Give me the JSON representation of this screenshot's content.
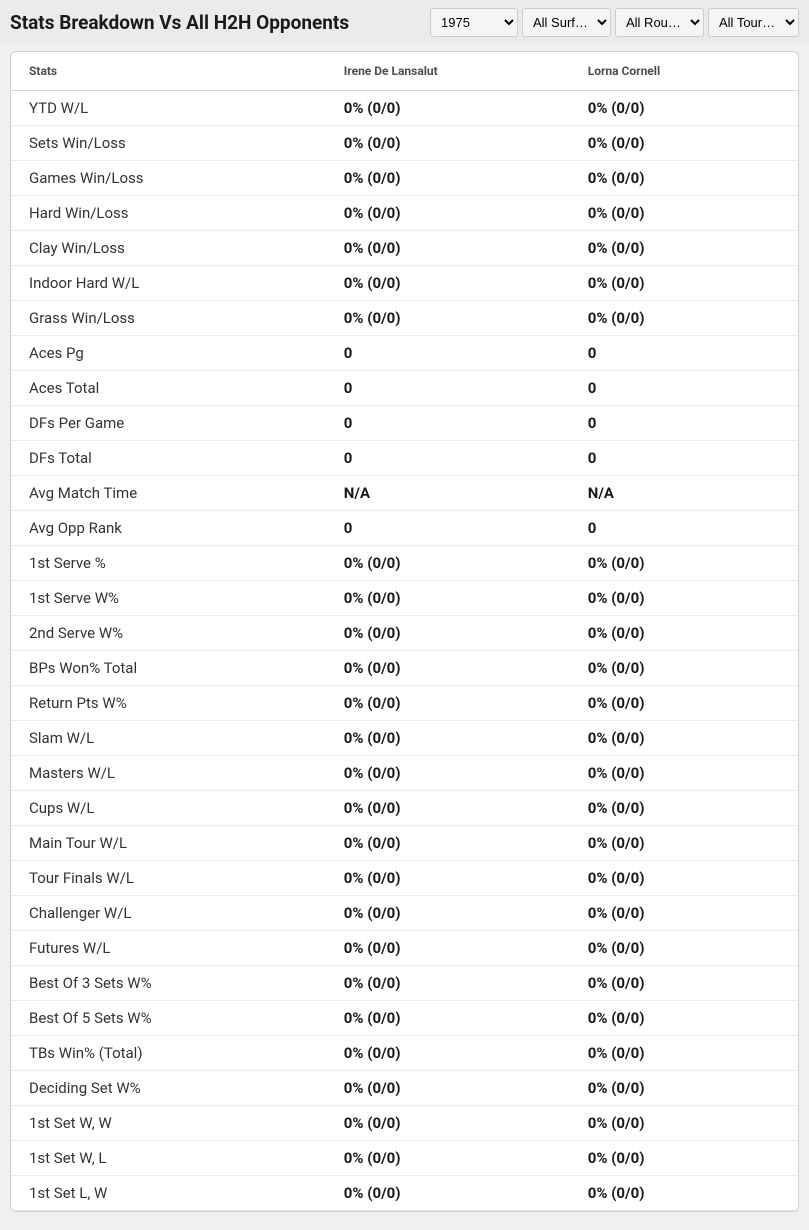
{
  "header": {
    "title": "Stats Breakdown Vs All H2H Opponents"
  },
  "filters": {
    "year": {
      "selected": "1975"
    },
    "surface": {
      "selected": "All Surf…"
    },
    "rounds": {
      "selected": "All Rou…"
    },
    "tour": {
      "selected": "All Tour…"
    }
  },
  "table": {
    "columns": {
      "stat": "Stats",
      "player1": "Irene De Lansalut",
      "player2": "Lorna Cornell"
    },
    "rows": [
      {
        "stat": "YTD W/L",
        "p1": "0% (0/0)",
        "p2": "0% (0/0)"
      },
      {
        "stat": "Sets Win/Loss",
        "p1": "0% (0/0)",
        "p2": "0% (0/0)"
      },
      {
        "stat": "Games Win/Loss",
        "p1": "0% (0/0)",
        "p2": "0% (0/0)"
      },
      {
        "stat": "Hard Win/Loss",
        "p1": "0% (0/0)",
        "p2": "0% (0/0)"
      },
      {
        "stat": "Clay Win/Loss",
        "p1": "0% (0/0)",
        "p2": "0% (0/0)"
      },
      {
        "stat": "Indoor Hard W/L",
        "p1": "0% (0/0)",
        "p2": "0% (0/0)"
      },
      {
        "stat": "Grass Win/Loss",
        "p1": "0% (0/0)",
        "p2": "0% (0/0)"
      },
      {
        "stat": "Aces Pg",
        "p1": "0",
        "p2": "0"
      },
      {
        "stat": "Aces Total",
        "p1": "0",
        "p2": "0"
      },
      {
        "stat": "DFs Per Game",
        "p1": "0",
        "p2": "0"
      },
      {
        "stat": "DFs Total",
        "p1": "0",
        "p2": "0"
      },
      {
        "stat": "Avg Match Time",
        "p1": "N/A",
        "p2": "N/A"
      },
      {
        "stat": "Avg Opp Rank",
        "p1": "0",
        "p2": "0"
      },
      {
        "stat": "1st Serve %",
        "p1": "0% (0/0)",
        "p2": "0% (0/0)"
      },
      {
        "stat": "1st Serve W%",
        "p1": "0% (0/0)",
        "p2": "0% (0/0)"
      },
      {
        "stat": "2nd Serve W%",
        "p1": "0% (0/0)",
        "p2": "0% (0/0)"
      },
      {
        "stat": "BPs Won% Total",
        "p1": "0% (0/0)",
        "p2": "0% (0/0)"
      },
      {
        "stat": "Return Pts W%",
        "p1": "0% (0/0)",
        "p2": "0% (0/0)"
      },
      {
        "stat": "Slam W/L",
        "p1": "0% (0/0)",
        "p2": "0% (0/0)"
      },
      {
        "stat": "Masters W/L",
        "p1": "0% (0/0)",
        "p2": "0% (0/0)"
      },
      {
        "stat": "Cups W/L",
        "p1": "0% (0/0)",
        "p2": "0% (0/0)"
      },
      {
        "stat": "Main Tour W/L",
        "p1": "0% (0/0)",
        "p2": "0% (0/0)"
      },
      {
        "stat": "Tour Finals W/L",
        "p1": "0% (0/0)",
        "p2": "0% (0/0)"
      },
      {
        "stat": "Challenger W/L",
        "p1": "0% (0/0)",
        "p2": "0% (0/0)"
      },
      {
        "stat": "Futures W/L",
        "p1": "0% (0/0)",
        "p2": "0% (0/0)"
      },
      {
        "stat": "Best Of 3 Sets W%",
        "p1": "0% (0/0)",
        "p2": "0% (0/0)"
      },
      {
        "stat": "Best Of 5 Sets W%",
        "p1": "0% (0/0)",
        "p2": "0% (0/0)"
      },
      {
        "stat": "TBs Win% (Total)",
        "p1": "0% (0/0)",
        "p2": "0% (0/0)"
      },
      {
        "stat": "Deciding Set W%",
        "p1": "0% (0/0)",
        "p2": "0% (0/0)"
      },
      {
        "stat": "1st Set W, W",
        "p1": "0% (0/0)",
        "p2": "0% (0/0)"
      },
      {
        "stat": "1st Set W, L",
        "p1": "0% (0/0)",
        "p2": "0% (0/0)"
      },
      {
        "stat": "1st Set L, W",
        "p1": "0% (0/0)",
        "p2": "0% (0/0)"
      }
    ]
  }
}
